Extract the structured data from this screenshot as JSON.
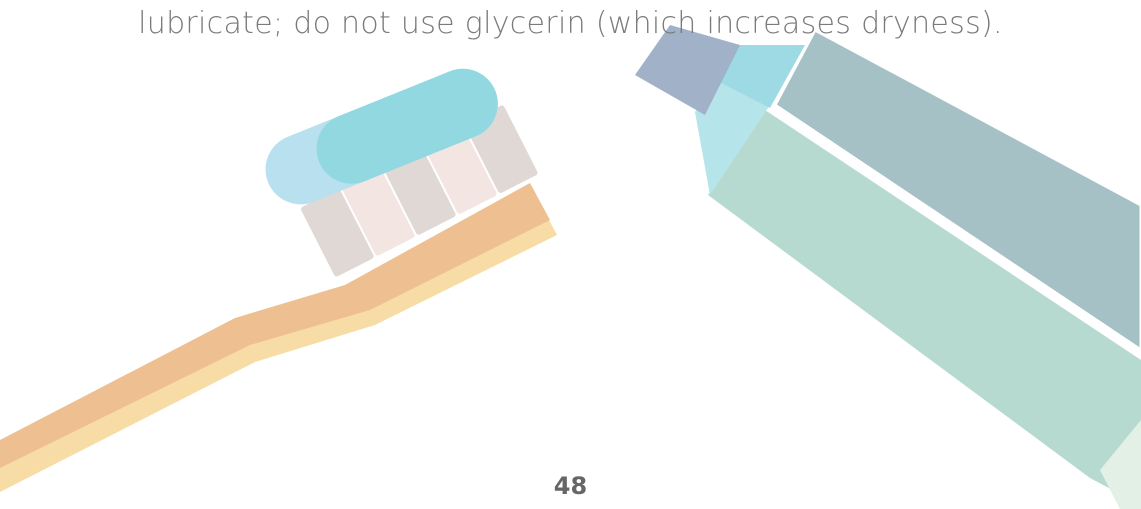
{
  "body": {
    "text": "lubricate; do not use glycerin (which increases dryness)."
  },
  "footer": {
    "page_number": "48"
  }
}
